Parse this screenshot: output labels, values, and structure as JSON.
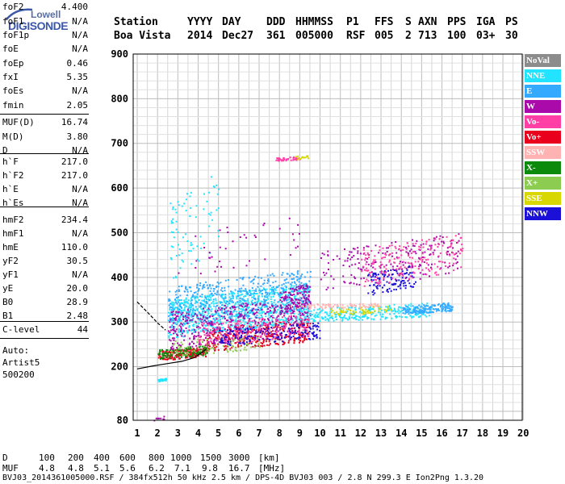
{
  "logo": {
    "top": "Lowell",
    "bottom": "DIGISONDE"
  },
  "header": {
    "labels": [
      "Station",
      "YYYY",
      "DAY",
      "DDD",
      "HHMMSS",
      "P1",
      "FFS",
      "S",
      "AXN",
      "PPS",
      "IGA",
      "PS"
    ],
    "values": [
      "Boa Vista",
      "2014",
      "Dec27",
      "361",
      "005000",
      "RSF",
      "005",
      "2",
      "713",
      "100",
      "03+",
      "30"
    ]
  },
  "params": {
    "group1": [
      {
        "name": "foF2",
        "value": "4.400"
      },
      {
        "name": "foF1",
        "value": "N/A"
      },
      {
        "name": "foF1p",
        "value": "N/A"
      },
      {
        "name": "foE",
        "value": "N/A"
      },
      {
        "name": "foEp",
        "value": "0.46"
      },
      {
        "name": "fxI",
        "value": "5.35"
      },
      {
        "name": "foEs",
        "value": "N/A"
      },
      {
        "name": "fmin",
        "value": "2.05"
      }
    ],
    "group2": [
      {
        "name": "MUF(D)",
        "value": "16.74"
      },
      {
        "name": "M(D)",
        "value": "3.80"
      },
      {
        "name": "D",
        "value": "N/A"
      }
    ],
    "group3": [
      {
        "name": "h`F",
        "value": "217.0"
      },
      {
        "name": "h`F2",
        "value": "217.0"
      },
      {
        "name": "h`E",
        "value": "N/A"
      },
      {
        "name": "h`Es",
        "value": "N/A"
      }
    ],
    "group4": [
      {
        "name": "hmF2",
        "value": "234.4"
      },
      {
        "name": "hmF1",
        "value": "N/A"
      },
      {
        "name": "hmE",
        "value": "110.0"
      },
      {
        "name": "yF2",
        "value": "30.5"
      },
      {
        "name": "yF1",
        "value": "N/A"
      },
      {
        "name": "yE",
        "value": "20.0"
      },
      {
        "name": "B0",
        "value": "28.9"
      },
      {
        "name": "B1",
        "value": "2.48"
      }
    ],
    "group5": [
      {
        "name": "C-level",
        "value": "44"
      }
    ],
    "auto_lines": [
      "Auto:",
      "Artist5",
      "500200"
    ]
  },
  "legend": [
    {
      "label": "NoVal",
      "color": "#8c8c8c"
    },
    {
      "label": "NNE",
      "color": "#22e4ff"
    },
    {
      "label": "E",
      "color": "#33aaff"
    },
    {
      "label": "W",
      "color": "#aa0aa9"
    },
    {
      "label": "Vo-",
      "color": "#ff3fa6"
    },
    {
      "label": "Vo+",
      "color": "#e8001c"
    },
    {
      "label": "SSW",
      "color": "#ffb2b2"
    },
    {
      "label": "X-",
      "color": "#0c8a0c"
    },
    {
      "label": "X+",
      "color": "#8ccc50"
    },
    {
      "label": "SSE",
      "color": "#d8d800"
    },
    {
      "label": "NNW",
      "color": "#1a10d8"
    }
  ],
  "bottom": {
    "d_label": "D",
    "d_values": [
      "100",
      "200",
      "400",
      "600",
      "800",
      "1000",
      "1500",
      "3000",
      "[km]"
    ],
    "muf_label": "MUF",
    "muf_values": [
      "4.8",
      "4.8",
      "5.1",
      "5.6",
      "6.2",
      "7.1",
      "9.8",
      "16.7",
      "[MHz]"
    ],
    "footer": "BVJ03_2014361005000.RSF / 384fx512h 50 kHz 2.5 km / DPS-4D BVJ03 003 / 2.8 N 299.3 E Ion2Png 1.3.20"
  },
  "chart_data": {
    "type": "scatter",
    "title": "",
    "xlabel": "",
    "ylabel": "",
    "xlim": [
      1,
      20
    ],
    "ylim": [
      80,
      900
    ],
    "x_ticks": [
      1,
      2,
      3,
      4,
      5,
      6,
      7,
      8,
      9,
      10,
      11,
      12,
      13,
      14,
      15,
      16,
      17,
      18,
      19,
      20
    ],
    "y_ticks": [
      80,
      200,
      300,
      400,
      500,
      600,
      700,
      800,
      900
    ],
    "grid": true,
    "legend_position": "right",
    "profile_line": [
      [
        1.0,
        195
      ],
      [
        1.8,
        202
      ],
      [
        2.5,
        207
      ],
      [
        3.2,
        212
      ],
      [
        3.8,
        220
      ],
      [
        4.2,
        232
      ],
      [
        4.4,
        240
      ]
    ],
    "profile_upper": [
      [
        1.0,
        345
      ],
      [
        1.5,
        322
      ],
      [
        2.0,
        298
      ],
      [
        2.4,
        282
      ]
    ],
    "clusters": [
      {
        "mode": "Vo+",
        "x": [
          2.0,
          4.4
        ],
        "y": [
          215,
          245
        ],
        "n": 180
      },
      {
        "mode": "Vo+",
        "x": [
          4.4,
          9.5
        ],
        "y": [
          235,
          310
        ],
        "n": 320
      },
      {
        "mode": "X-",
        "x": [
          2.0,
          4.5
        ],
        "y": [
          218,
          250
        ],
        "n": 120
      },
      {
        "mode": "X+",
        "x": [
          2.6,
          7.0
        ],
        "y": [
          225,
          275
        ],
        "n": 100
      },
      {
        "mode": "NNE",
        "x": [
          2.5,
          9.5
        ],
        "y": [
          265,
          390
        ],
        "n": 900
      },
      {
        "mode": "E",
        "x": [
          2.5,
          9.5
        ],
        "y": [
          290,
          420
        ],
        "n": 500
      },
      {
        "mode": "W",
        "x": [
          2.5,
          9.5
        ],
        "y": [
          240,
          360
        ],
        "n": 450
      },
      {
        "mode": "W",
        "x": [
          8.0,
          9.5
        ],
        "y": [
          320,
          390
        ],
        "n": 120
      },
      {
        "mode": "Vo-",
        "x": [
          4.0,
          9.5
        ],
        "y": [
          245,
          320
        ],
        "n": 180
      },
      {
        "mode": "NNW",
        "x": [
          5.0,
          10.0
        ],
        "y": [
          248,
          300
        ],
        "n": 150
      },
      {
        "mode": "NNW",
        "x": [
          12.3,
          14.7
        ],
        "y": [
          360,
          430
        ],
        "n": 120
      },
      {
        "mode": "NNE",
        "x": [
          9.5,
          15.5
        ],
        "y": [
          300,
          345
        ],
        "n": 260
      },
      {
        "mode": "E",
        "x": [
          14.0,
          16.5
        ],
        "y": [
          318,
          345
        ],
        "n": 160
      },
      {
        "mode": "SSE",
        "x": [
          10.5,
          13.5
        ],
        "y": [
          315,
          340
        ],
        "n": 60
      },
      {
        "mode": "SSW",
        "x": [
          8.5,
          13.0
        ],
        "y": [
          330,
          345
        ],
        "n": 80
      },
      {
        "mode": "W",
        "x": [
          10.0,
          16.8
        ],
        "y": [
          370,
          500
        ],
        "n": 200
      },
      {
        "mode": "Vo-",
        "x": [
          12.0,
          17.0
        ],
        "y": [
          380,
          500
        ],
        "n": 200
      },
      {
        "mode": "NNE",
        "x": [
          2.0,
          2.4
        ],
        "y": [
          168,
          175
        ],
        "n": 25
      },
      {
        "mode": "W",
        "x": [
          1.8,
          2.3
        ],
        "y": [
          80,
          90
        ],
        "n": 10
      },
      {
        "mode": "Vo-",
        "x": [
          7.8,
          9.0
        ],
        "y": [
          662,
          672
        ],
        "n": 40
      },
      {
        "mode": "SSE",
        "x": [
          8.7,
          9.4
        ],
        "y": [
          665,
          675
        ],
        "n": 15
      },
      {
        "mode": "NNE",
        "x": [
          2.6,
          5.0
        ],
        "y": [
          390,
          650
        ],
        "n": 80
      },
      {
        "mode": "W",
        "x": [
          3.0,
          9.0
        ],
        "y": [
          400,
          540
        ],
        "n": 40
      }
    ]
  }
}
